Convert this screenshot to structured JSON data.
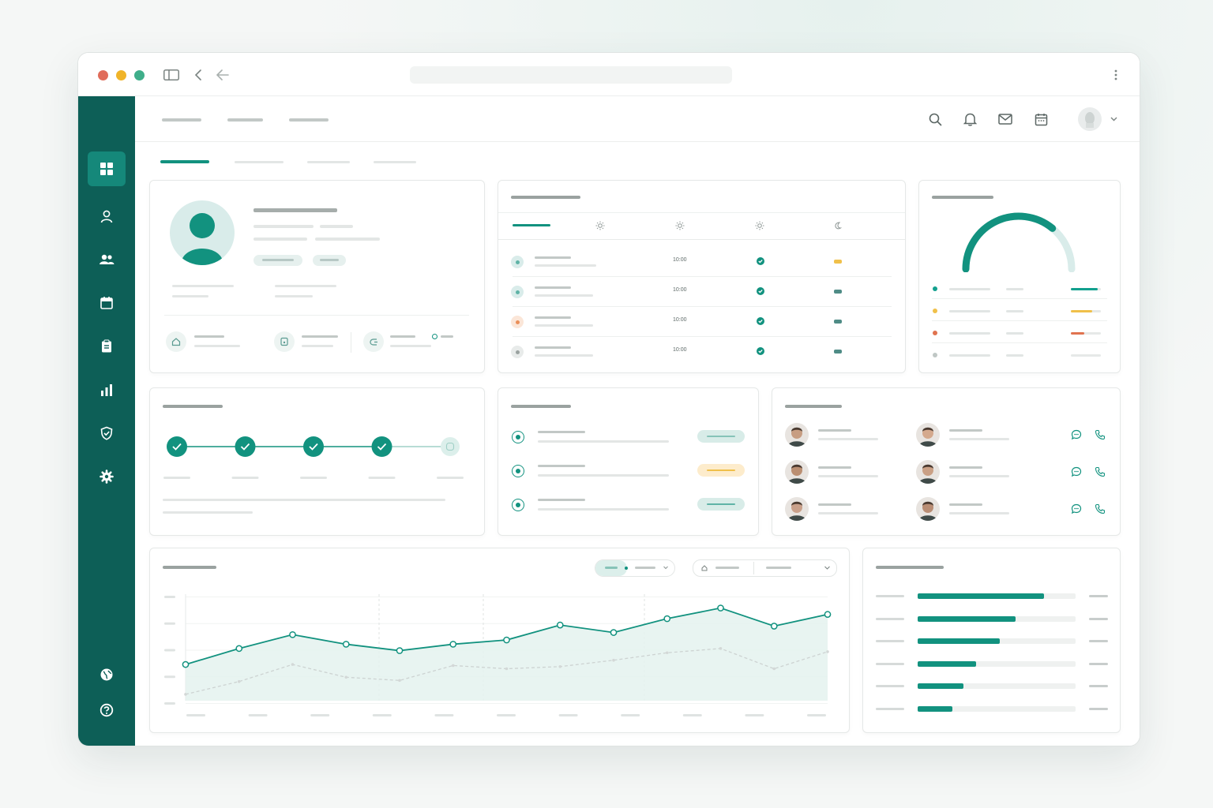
{
  "window": {
    "traffic_lights": {
      "close": "#e06c5a",
      "minimize": "#f0b429",
      "maximize": "#3fae8a"
    },
    "menu_icon": "more-vertical-icon"
  },
  "theme": {
    "primary": "#0d5f57",
    "accent": "#15887a",
    "teal": "#12a08e",
    "yellow": "#f0c04a",
    "orange": "#ea8f5a",
    "gray": "#c8cecc"
  },
  "sidebar": {
    "items": [
      {
        "icon": "dashboard-grid-icon",
        "active": true
      },
      {
        "icon": "user-icon"
      },
      {
        "icon": "users-group-icon"
      },
      {
        "icon": "calendar-icon"
      },
      {
        "icon": "clipboard-icon"
      },
      {
        "icon": "bar-chart-icon"
      },
      {
        "icon": "shield-check-icon"
      },
      {
        "icon": "settings-gear-icon"
      }
    ],
    "bottom_items": [
      {
        "icon": "globe-icon"
      },
      {
        "icon": "help-icon"
      }
    ]
  },
  "header_icons": [
    "search-icon",
    "bell-icon",
    "mail-icon",
    "calendar-icon"
  ],
  "schedule": {
    "shift_icons": [
      "sun-icon",
      "sun-icon",
      "sun-icon",
      "moon-icon"
    ],
    "rows": [
      {
        "time": "10:00",
        "status_color": "#f0c04a"
      },
      {
        "time": "10:00",
        "status_color": "#4f8c86"
      },
      {
        "time": "10:00",
        "status_color": "#4f8c86"
      },
      {
        "time": "10:00",
        "status_color": "#4f8c86"
      }
    ]
  },
  "gauge": {
    "progress": 0.72
  },
  "legend_stats": [
    {
      "color": "#12a08e",
      "fill": 0.9
    },
    {
      "color": "#f0c04a",
      "fill": 0.7
    },
    {
      "color": "#e0734f",
      "fill": 0.45
    },
    {
      "color": "#c0c7c5",
      "fill": 0.0
    }
  ],
  "progress_steps": {
    "completed": 4,
    "total": 5
  },
  "tasks": [
    {
      "badge_color": "#d8ece8",
      "badge_line": "#86c3b8"
    },
    {
      "badge_color": "#fdeccc",
      "badge_line": "#f0c04a"
    },
    {
      "badge_color": "#d8ece8",
      "badge_line": "#5fb3a6"
    }
  ],
  "chart_data": {
    "type": "area",
    "series": [
      {
        "values": [
          34,
          49,
          62,
          53,
          47,
          53,
          57,
          71,
          64,
          77,
          87,
          70,
          81
        ]
      },
      {
        "values": [
          6,
          18,
          34,
          22,
          19,
          33,
          30,
          32,
          38,
          45,
          49,
          30,
          46
        ]
      }
    ],
    "ylim": [
      0,
      100
    ],
    "grid": true
  },
  "bar_list": {
    "values": [
      0.8,
      0.62,
      0.52,
      0.37,
      0.29,
      0.22
    ]
  }
}
